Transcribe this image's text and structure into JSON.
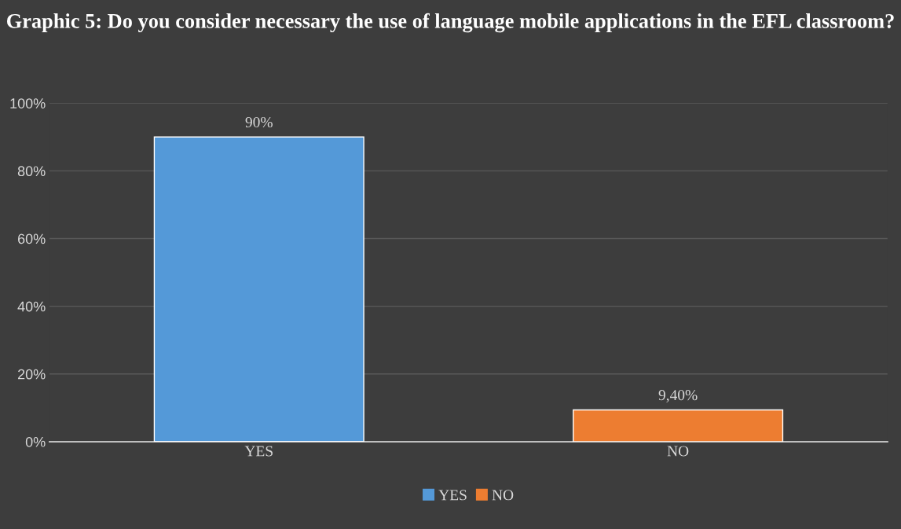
{
  "chart_data": {
    "type": "bar",
    "title": "Graphic 5: Do you consider necessary the use of language mobile applications in the EFL classroom?",
    "categories": [
      "YES",
      "NO"
    ],
    "series": [
      {
        "name": "YES",
        "color": "#5499d8",
        "values": [
          90,
          null
        ],
        "value_labels": [
          "90%",
          null
        ]
      },
      {
        "name": "NO",
        "color": "#ed7d31",
        "values": [
          null,
          9.4
        ],
        "value_labels": [
          null,
          "9,40%"
        ]
      }
    ],
    "ylim": [
      0,
      100
    ],
    "yticks": [
      {
        "value": 0,
        "label": "0%"
      },
      {
        "value": 20,
        "label": "20%"
      },
      {
        "value": 40,
        "label": "40%"
      },
      {
        "value": 60,
        "label": "60%"
      },
      {
        "value": 80,
        "label": "80%"
      },
      {
        "value": 100,
        "label": "100%"
      }
    ],
    "grid": "y",
    "legend": "bottom"
  }
}
